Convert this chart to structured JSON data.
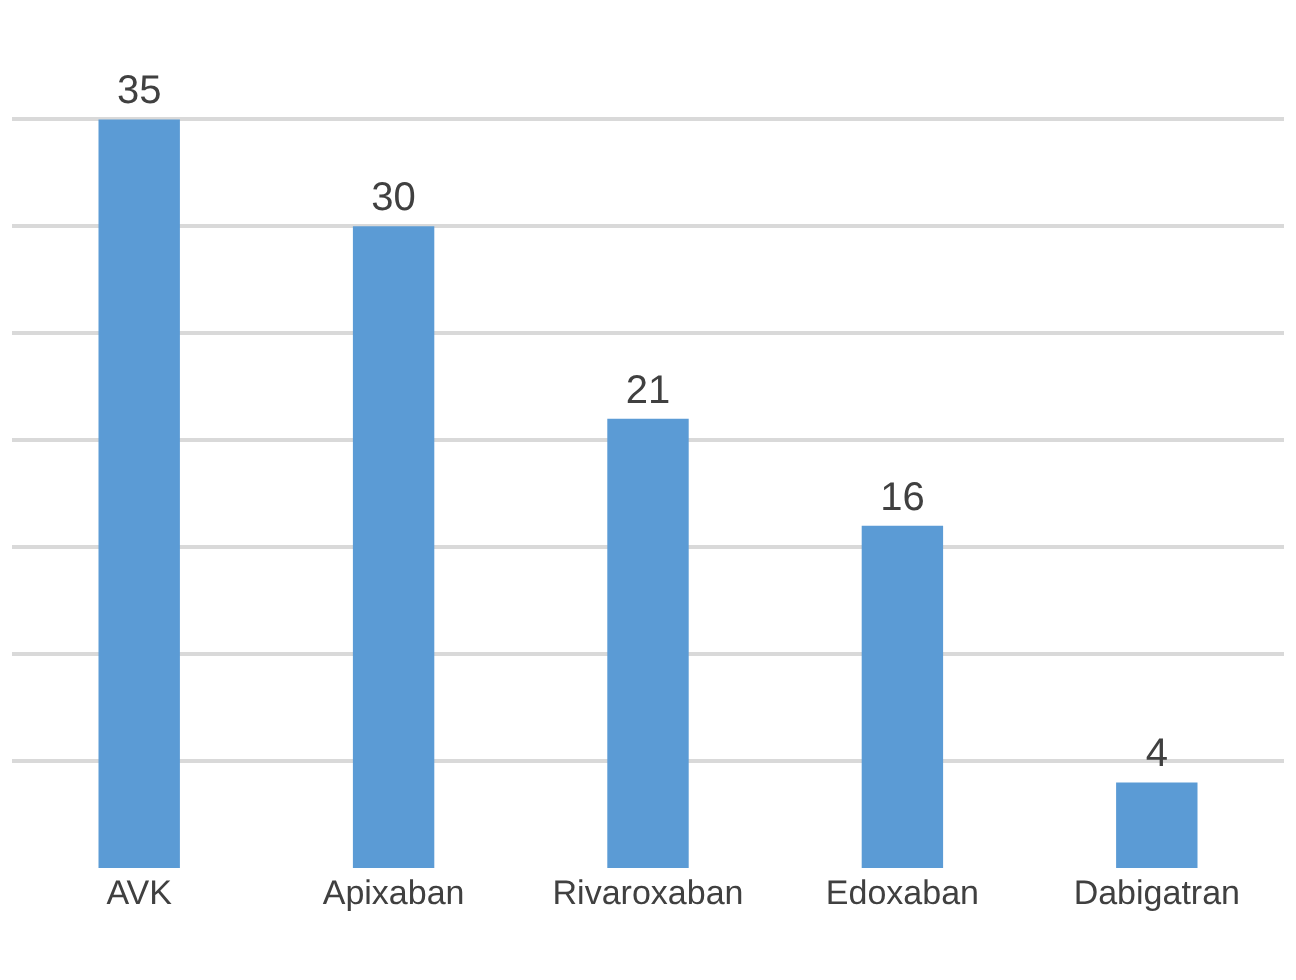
{
  "chart_data": {
    "type": "bar",
    "categories": [
      "AVK",
      "Apixaban",
      "Rivaroxaban",
      "Edoxaban",
      "Dabigatran"
    ],
    "values": [
      35,
      30,
      21,
      16,
      4
    ],
    "color": "#5b9bd5",
    "data_labels": true,
    "grid": "y",
    "tick_labels": "x"
  }
}
